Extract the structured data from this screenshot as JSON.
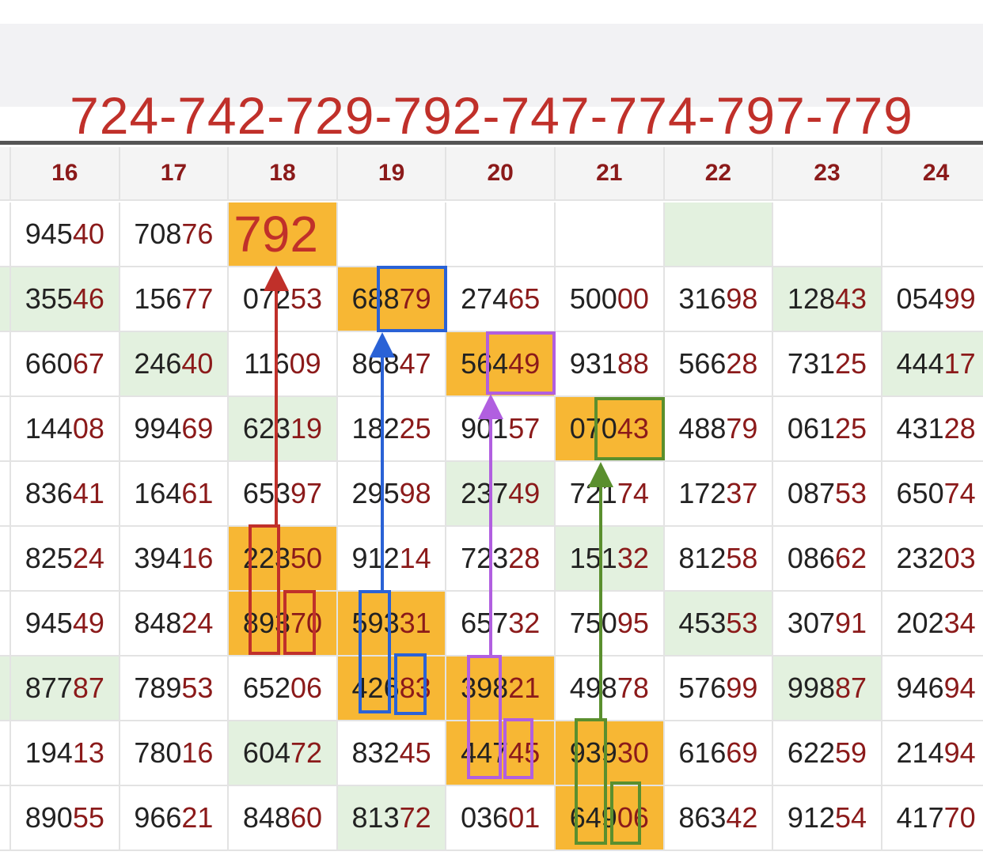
{
  "title": "724-742-729-792-747-774-797-779",
  "table": {
    "columns": [
      "16",
      "17",
      "18",
      "19",
      "20",
      "21",
      "22",
      "23",
      "24"
    ],
    "rows": [
      [
        "94540",
        "70876",
        "792",
        "",
        "",
        "",
        "",
        "",
        ""
      ],
      [
        "35546",
        "15677",
        "07253",
        "68879",
        "27465",
        "50000",
        "31698",
        "12843",
        "05499"
      ],
      [
        "66067",
        "24640",
        "11609",
        "86847",
        "56449",
        "93188",
        "56628",
        "73125",
        "44417"
      ],
      [
        "14408",
        "99469",
        "62319",
        "18225",
        "90157",
        "07043",
        "48879",
        "06125",
        "43128"
      ],
      [
        "83641",
        "16461",
        "65397",
        "29598",
        "23749",
        "72174",
        "17237",
        "08753",
        "65074"
      ],
      [
        "82524",
        "39416",
        "22350",
        "91214",
        "72328",
        "15132",
        "81258",
        "08662",
        "23203"
      ],
      [
        "94549",
        "84824",
        "89370",
        "59331",
        "65732",
        "75095",
        "45353",
        "30791",
        "20234"
      ],
      [
        "87787",
        "78953",
        "65206",
        "42683",
        "39821",
        "49878",
        "57699",
        "99887",
        "94694"
      ],
      [
        "19413",
        "78016",
        "60472",
        "83245",
        "44745",
        "93930",
        "61669",
        "62259",
        "21494"
      ],
      [
        "89055",
        "96621",
        "84860",
        "81372",
        "03601",
        "64906",
        "86342",
        "91254",
        "41770"
      ]
    ]
  }
}
